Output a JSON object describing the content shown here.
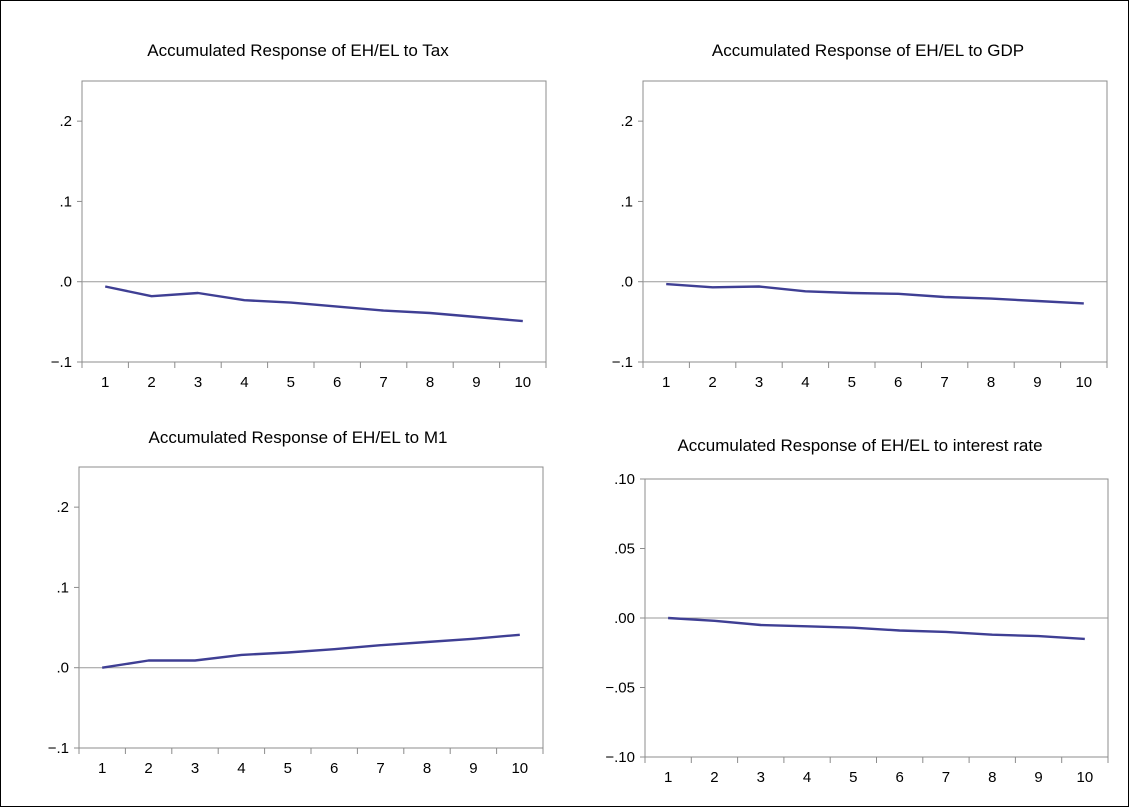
{
  "chart_data": [
    {
      "type": "line",
      "title": "Accumulated Response of EH/EL to Tax",
      "x": [
        1,
        2,
        3,
        4,
        5,
        6,
        7,
        8,
        9,
        10
      ],
      "ylim": [
        -0.1,
        0.25
      ],
      "yticks": [
        -0.1,
        0.0,
        0.1,
        0.2
      ],
      "ytick_labels": [
        "−.1",
        ".0",
        ".1",
        ".2"
      ],
      "series": [
        {
          "values": [
            -0.006,
            -0.018,
            -0.014,
            -0.023,
            -0.026,
            -0.031,
            -0.036,
            -0.039,
            -0.044,
            -0.049
          ]
        }
      ],
      "color": "#3f3f94"
    },
    {
      "type": "line",
      "title": "Accumulated Response of EH/EL to GDP",
      "x": [
        1,
        2,
        3,
        4,
        5,
        6,
        7,
        8,
        9,
        10
      ],
      "ylim": [
        -0.1,
        0.25
      ],
      "yticks": [
        -0.1,
        0.0,
        0.1,
        0.2
      ],
      "ytick_labels": [
        "−.1",
        ".0",
        ".1",
        ".2"
      ],
      "series": [
        {
          "values": [
            -0.003,
            -0.007,
            -0.006,
            -0.012,
            -0.014,
            -0.015,
            -0.019,
            -0.021,
            -0.024,
            -0.027
          ]
        }
      ],
      "color": "#3f3f94"
    },
    {
      "type": "line",
      "title": "Accumulated Response of EH/EL to M1",
      "x": [
        1,
        2,
        3,
        4,
        5,
        6,
        7,
        8,
        9,
        10
      ],
      "ylim": [
        -0.1,
        0.25
      ],
      "yticks": [
        -0.1,
        0.0,
        0.1,
        0.2
      ],
      "ytick_labels": [
        "−.1",
        ".0",
        ".1",
        ".2"
      ],
      "series": [
        {
          "values": [
            0.0,
            0.009,
            0.009,
            0.016,
            0.019,
            0.023,
            0.028,
            0.032,
            0.036,
            0.041
          ]
        }
      ],
      "color": "#3f3f94"
    },
    {
      "type": "line",
      "title": "Accumulated Response of EH/EL to interest rate",
      "x": [
        1,
        2,
        3,
        4,
        5,
        6,
        7,
        8,
        9,
        10
      ],
      "ylim": [
        -0.1,
        0.1
      ],
      "yticks": [
        -0.1,
        -0.05,
        0.0,
        0.05,
        0.1
      ],
      "ytick_labels": [
        "−.10",
        "−.05",
        ".00",
        ".05",
        ".10"
      ],
      "series": [
        {
          "values": [
            0.0,
            -0.002,
            -0.005,
            -0.006,
            -0.007,
            -0.009,
            -0.01,
            -0.012,
            -0.013,
            -0.015
          ]
        }
      ],
      "color": "#3f3f94"
    }
  ]
}
